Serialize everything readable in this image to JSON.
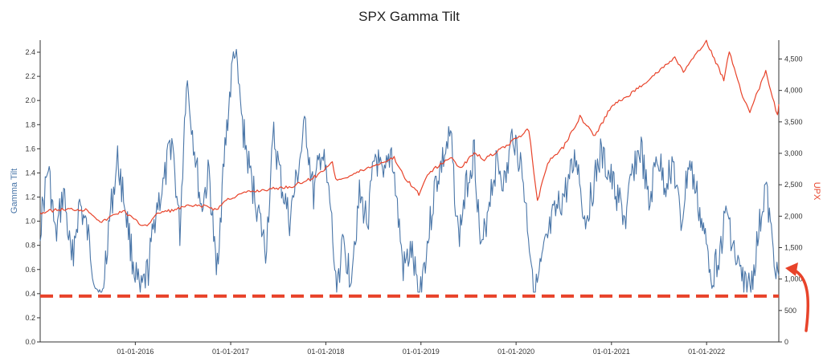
{
  "chart_data": {
    "type": "line",
    "title": "SPX Gamma Tilt",
    "ylabel": "Gamma Tilt",
    "y2label": "UPX",
    "ylim": [
      0,
      2.5
    ],
    "y2lim": [
      0,
      4800
    ],
    "xlim": [
      "2015-01-01",
      "2022-10-05"
    ],
    "y_ticks": [
      "0.0",
      "0.2",
      "0.4",
      "0.6",
      "0.8",
      "1.0",
      "1.2",
      "1.4",
      "1.6",
      "1.8",
      "2.0",
      "2.2",
      "2.4"
    ],
    "y2_ticks": [
      "0",
      "500",
      "1,000",
      "1,500",
      "2,000",
      "2,500",
      "3,000",
      "3,500",
      "4,000",
      "4,500"
    ],
    "x_ticks": [
      "01-01-2016",
      "01-01-2017",
      "01-01-2018",
      "01-01-2019",
      "01-01-2020",
      "01-01-2021",
      "01-01-2022"
    ],
    "threshold": 0.38,
    "series": [
      {
        "axis": "left",
        "color": "#4a76a8",
        "points": [
          [
            "2015-01-01",
            0.95
          ],
          [
            "2015-02-01",
            1.45
          ],
          [
            "2015-03-01",
            0.85
          ],
          [
            "2015-04-01",
            1.25
          ],
          [
            "2015-05-01",
            0.65
          ],
          [
            "2015-06-01",
            1.15
          ],
          [
            "2015-07-01",
            0.9
          ],
          [
            "2015-08-01",
            0.5
          ],
          [
            "2015-08-25",
            0.3
          ],
          [
            "2015-09-20",
            0.95
          ],
          [
            "2015-10-25",
            1.5
          ],
          [
            "2015-11-25",
            1.1
          ],
          [
            "2015-12-20",
            0.7
          ],
          [
            "2016-01-20",
            0.38
          ],
          [
            "2016-02-20",
            0.6
          ],
          [
            "2016-03-20",
            1.1
          ],
          [
            "2016-04-20",
            1.3
          ],
          [
            "2016-05-20",
            1.7
          ],
          [
            "2016-06-20",
            0.9
          ],
          [
            "2016-07-15",
            2.2
          ],
          [
            "2016-08-15",
            1.6
          ],
          [
            "2016-09-10",
            1.1
          ],
          [
            "2016-10-10",
            1.4
          ],
          [
            "2016-11-07",
            0.55
          ],
          [
            "2016-12-10",
            1.6
          ],
          [
            "2017-01-15",
            2.45
          ],
          [
            "2017-02-15",
            1.8
          ],
          [
            "2017-03-15",
            1.4
          ],
          [
            "2017-04-15",
            1.1
          ],
          [
            "2017-05-15",
            0.75
          ],
          [
            "2017-06-15",
            1.7
          ],
          [
            "2017-07-15",
            1.3
          ],
          [
            "2017-08-15",
            1.0
          ],
          [
            "2017-09-15",
            1.4
          ],
          [
            "2017-10-15",
            1.8
          ],
          [
            "2017-11-15",
            1.2
          ],
          [
            "2017-12-15",
            1.6
          ],
          [
            "2018-01-20",
            1.1
          ],
          [
            "2018-02-08",
            0.45
          ],
          [
            "2018-03-10",
            0.8
          ],
          [
            "2018-04-05",
            0.55
          ],
          [
            "2018-05-10",
            1.2
          ],
          [
            "2018-06-10",
            1.0
          ],
          [
            "2018-07-10",
            1.55
          ],
          [
            "2018-08-10",
            1.3
          ],
          [
            "2018-09-10",
            1.6
          ],
          [
            "2018-10-25",
            0.6
          ],
          [
            "2018-11-25",
            0.75
          ],
          [
            "2018-12-24",
            0.38
          ],
          [
            "2019-01-25",
            0.8
          ],
          [
            "2019-02-25",
            1.3
          ],
          [
            "2019-03-25",
            1.5
          ],
          [
            "2019-04-25",
            1.7
          ],
          [
            "2019-05-25",
            0.85
          ],
          [
            "2019-06-25",
            1.3
          ],
          [
            "2019-07-25",
            1.6
          ],
          [
            "2019-08-20",
            0.7
          ],
          [
            "2019-09-20",
            1.2
          ],
          [
            "2019-10-20",
            1.5
          ],
          [
            "2019-11-20",
            1.3
          ],
          [
            "2019-12-20",
            1.75
          ],
          [
            "2020-01-25",
            1.4
          ],
          [
            "2020-02-25",
            0.75
          ],
          [
            "2020-03-15",
            0.4
          ],
          [
            "2020-04-20",
            0.75
          ],
          [
            "2020-05-20",
            1.0
          ],
          [
            "2020-06-20",
            1.15
          ],
          [
            "2020-07-20",
            1.3
          ],
          [
            "2020-08-20",
            1.55
          ],
          [
            "2020-09-20",
            1.0
          ],
          [
            "2020-10-20",
            1.25
          ],
          [
            "2020-11-20",
            1.55
          ],
          [
            "2020-12-20",
            1.4
          ],
          [
            "2021-01-25",
            1.2
          ],
          [
            "2021-02-25",
            1.0
          ],
          [
            "2021-03-25",
            1.45
          ],
          [
            "2021-04-25",
            1.6
          ],
          [
            "2021-05-25",
            1.1
          ],
          [
            "2021-06-25",
            1.55
          ],
          [
            "2021-07-25",
            1.3
          ],
          [
            "2021-08-25",
            1.5
          ],
          [
            "2021-09-25",
            0.95
          ],
          [
            "2021-10-25",
            1.5
          ],
          [
            "2021-11-25",
            1.2
          ],
          [
            "2021-12-20",
            0.9
          ],
          [
            "2022-01-25",
            0.55
          ],
          [
            "2022-02-25",
            0.8
          ],
          [
            "2022-03-20",
            1.1
          ],
          [
            "2022-04-20",
            0.7
          ],
          [
            "2022-05-20",
            0.5
          ],
          [
            "2022-06-20",
            0.45
          ],
          [
            "2022-07-20",
            0.9
          ],
          [
            "2022-08-15",
            1.3
          ],
          [
            "2022-09-10",
            0.8
          ],
          [
            "2022-10-05",
            0.55
          ]
        ]
      },
      {
        "axis": "right",
        "color": "#e8432a",
        "points": [
          [
            "2015-01-01",
            2050
          ],
          [
            "2015-03-01",
            2100
          ],
          [
            "2015-05-01",
            2110
          ],
          [
            "2015-07-01",
            2100
          ],
          [
            "2015-08-25",
            1900
          ],
          [
            "2015-10-01",
            2000
          ],
          [
            "2015-11-15",
            2090
          ],
          [
            "2016-01-20",
            1870
          ],
          [
            "2016-02-15",
            1860
          ],
          [
            "2016-04-01",
            2060
          ],
          [
            "2016-06-01",
            2100
          ],
          [
            "2016-07-15",
            2160
          ],
          [
            "2016-10-01",
            2160
          ],
          [
            "2016-11-07",
            2100
          ],
          [
            "2016-12-15",
            2260
          ],
          [
            "2017-03-01",
            2380
          ],
          [
            "2017-06-01",
            2430
          ],
          [
            "2017-09-01",
            2480
          ],
          [
            "2017-12-01",
            2650
          ],
          [
            "2018-01-26",
            2870
          ],
          [
            "2018-02-08",
            2580
          ],
          [
            "2018-04-01",
            2640
          ],
          [
            "2018-06-01",
            2750
          ],
          [
            "2018-09-20",
            2930
          ],
          [
            "2018-10-25",
            2650
          ],
          [
            "2018-12-24",
            2350
          ],
          [
            "2019-02-01",
            2700
          ],
          [
            "2019-04-30",
            2940
          ],
          [
            "2019-06-01",
            2750
          ],
          [
            "2019-07-25",
            3020
          ],
          [
            "2019-09-01",
            2900
          ],
          [
            "2019-12-01",
            3140
          ],
          [
            "2020-02-19",
            3380
          ],
          [
            "2020-03-23",
            2240
          ],
          [
            "2020-05-01",
            2850
          ],
          [
            "2020-07-01",
            3100
          ],
          [
            "2020-09-02",
            3580
          ],
          [
            "2020-10-30",
            3270
          ],
          [
            "2020-12-31",
            3750
          ],
          [
            "2021-03-01",
            3900
          ],
          [
            "2021-06-01",
            4200
          ],
          [
            "2021-09-01",
            4520
          ],
          [
            "2021-10-04",
            4300
          ],
          [
            "2021-12-31",
            4780
          ],
          [
            "2022-03-08",
            4170
          ],
          [
            "2022-03-29",
            4630
          ],
          [
            "2022-05-20",
            3900
          ],
          [
            "2022-06-16",
            3670
          ],
          [
            "2022-08-16",
            4300
          ],
          [
            "2022-09-30",
            3590
          ],
          [
            "2022-10-05",
            3780
          ]
        ]
      }
    ]
  }
}
